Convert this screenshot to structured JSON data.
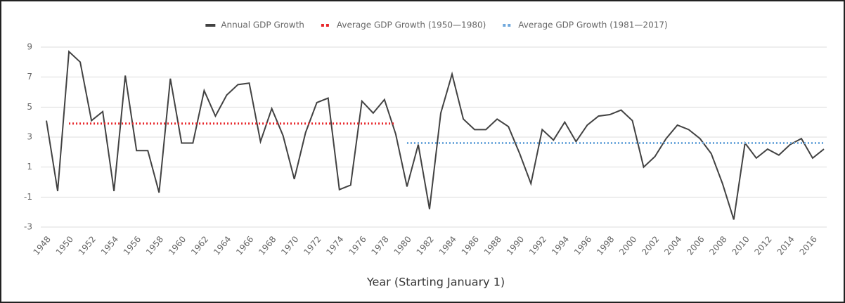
{
  "chart_data": {
    "type": "line",
    "x": [
      1948,
      1949,
      1950,
      1951,
      1952,
      1953,
      1954,
      1955,
      1956,
      1957,
      1958,
      1959,
      1960,
      1961,
      1962,
      1963,
      1964,
      1965,
      1966,
      1967,
      1968,
      1969,
      1970,
      1971,
      1972,
      1973,
      1974,
      1975,
      1976,
      1977,
      1978,
      1979,
      1980,
      1981,
      1982,
      1983,
      1984,
      1985,
      1986,
      1987,
      1988,
      1989,
      1990,
      1991,
      1992,
      1993,
      1994,
      1995,
      1996,
      1997,
      1998,
      1999,
      2000,
      2001,
      2002,
      2003,
      2004,
      2005,
      2006,
      2007,
      2008,
      2009,
      2010,
      2011,
      2012,
      2013,
      2014,
      2015,
      2016,
      2017
    ],
    "series": [
      {
        "name": "Annual GDP Growth",
        "color": "#424242",
        "style": "solid",
        "values": [
          4.1,
          -0.6,
          8.7,
          8.0,
          4.1,
          4.7,
          -0.6,
          7.1,
          2.1,
          2.1,
          -0.7,
          6.9,
          2.6,
          2.6,
          6.1,
          4.4,
          5.8,
          6.5,
          6.6,
          2.7,
          4.9,
          3.1,
          0.2,
          3.3,
          5.3,
          5.6,
          -0.5,
          -0.2,
          5.4,
          4.6,
          5.5,
          3.2,
          -0.3,
          2.5,
          -1.8,
          4.6,
          7.2,
          4.2,
          3.5,
          3.5,
          4.2,
          3.7,
          1.9,
          -0.1,
          3.5,
          2.8,
          4.0,
          2.7,
          3.8,
          4.4,
          4.5,
          4.8,
          4.1,
          1.0,
          1.7,
          2.9,
          3.8,
          3.5,
          2.9,
          1.9,
          -0.1,
          -2.5,
          2.6,
          1.6,
          2.2,
          1.8,
          2.5,
          2.9,
          1.6,
          2.2
        ]
      },
      {
        "name": "Average GDP Growth (1950—1980)",
        "color": "#e8262a",
        "style": "dotted",
        "values": [
          null,
          null,
          3.9,
          3.9,
          3.9,
          3.9,
          3.9,
          3.9,
          3.9,
          3.9,
          3.9,
          3.9,
          3.9,
          3.9,
          3.9,
          3.9,
          3.9,
          3.9,
          3.9,
          3.9,
          3.9,
          3.9,
          3.9,
          3.9,
          3.9,
          3.9,
          3.9,
          3.9,
          3.9,
          3.9,
          3.9,
          3.9,
          null,
          null,
          null,
          null,
          null,
          null,
          null,
          null,
          null,
          null,
          null,
          null,
          null,
          null,
          null,
          null,
          null,
          null,
          null,
          null,
          null,
          null,
          null,
          null,
          null,
          null,
          null,
          null,
          null,
          null,
          null,
          null,
          null,
          null,
          null,
          null,
          null,
          null
        ]
      },
      {
        "name": "Average GDP Growth (1981—2017)",
        "color": "#6fa8dc",
        "style": "dotted",
        "values": [
          null,
          null,
          null,
          null,
          null,
          null,
          null,
          null,
          null,
          null,
          null,
          null,
          null,
          null,
          null,
          null,
          null,
          null,
          null,
          null,
          null,
          null,
          null,
          null,
          null,
          null,
          null,
          null,
          null,
          null,
          null,
          null,
          2.6,
          2.6,
          2.6,
          2.6,
          2.6,
          2.6,
          2.6,
          2.6,
          2.6,
          2.6,
          2.6,
          2.6,
          2.6,
          2.6,
          2.6,
          2.6,
          2.6,
          2.6,
          2.6,
          2.6,
          2.6,
          2.6,
          2.6,
          2.6,
          2.6,
          2.6,
          2.6,
          2.6,
          2.6,
          2.6,
          2.6,
          2.6,
          2.6,
          2.6,
          2.6,
          2.6,
          2.6,
          2.6
        ]
      }
    ],
    "xlabel": "Year (Starting January 1)",
    "xlim": [
      1948,
      2017
    ],
    "xticks": [
      1948,
      1950,
      1952,
      1954,
      1956,
      1958,
      1960,
      1962,
      1964,
      1966,
      1968,
      1970,
      1972,
      1974,
      1976,
      1978,
      1980,
      1982,
      1984,
      1986,
      1988,
      1990,
      1992,
      1994,
      1996,
      1998,
      2000,
      2002,
      2004,
      2006,
      2008,
      2010,
      2012,
      2014,
      2016
    ],
    "ylim": [
      -3,
      9
    ],
    "yticks": [
      -3,
      -1,
      1,
      3,
      5,
      7,
      9
    ],
    "grid": true,
    "legend": "top"
  }
}
